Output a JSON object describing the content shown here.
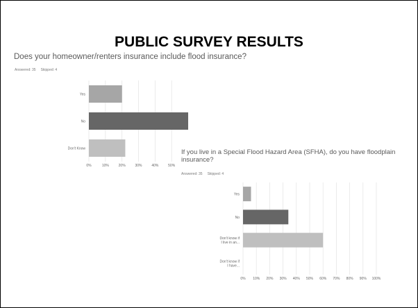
{
  "slide": {
    "title": "PUBLIC SURVEY RESULTS"
  },
  "q1": {
    "question": "Does your homeowner/renters insurance include flood insurance?",
    "answered": "Answered: 35",
    "skipped": "Skipped: 4"
  },
  "q2": {
    "question": "If you live in a Special Flood Hazard Area (SFHA), do you have floodplain insurance?",
    "answered": "Answered: 35",
    "skipped": "Skipped: 4"
  },
  "colors": {
    "bar_light": "#a6a6a6",
    "bar_dark": "#666666",
    "bar_pale": "#bfbfbf",
    "grid": "#e3e3e3"
  },
  "chart_data": [
    {
      "type": "bar",
      "orientation": "horizontal",
      "categories": [
        "Yes",
        "No",
        "Don't Know"
      ],
      "values": [
        20,
        60,
        22
      ],
      "xlim": [
        0,
        60
      ],
      "xticks": [
        "0%",
        "10%",
        "20%",
        "30%",
        "40%",
        "50%"
      ],
      "grid": true
    },
    {
      "type": "bar",
      "orientation": "horizontal",
      "categories": [
        [
          "Yes"
        ],
        [
          "No"
        ],
        [
          "Don't know if",
          "I live in an..."
        ],
        [
          "Don't know if",
          "I have..."
        ]
      ],
      "values": [
        6,
        34,
        60,
        0
      ],
      "xlim": [
        0,
        100
      ],
      "xticks": [
        "0%",
        "10%",
        "20%",
        "30%",
        "40%",
        "50%",
        "60%",
        "70%",
        "80%",
        "90%",
        "100%"
      ],
      "grid": true
    }
  ]
}
